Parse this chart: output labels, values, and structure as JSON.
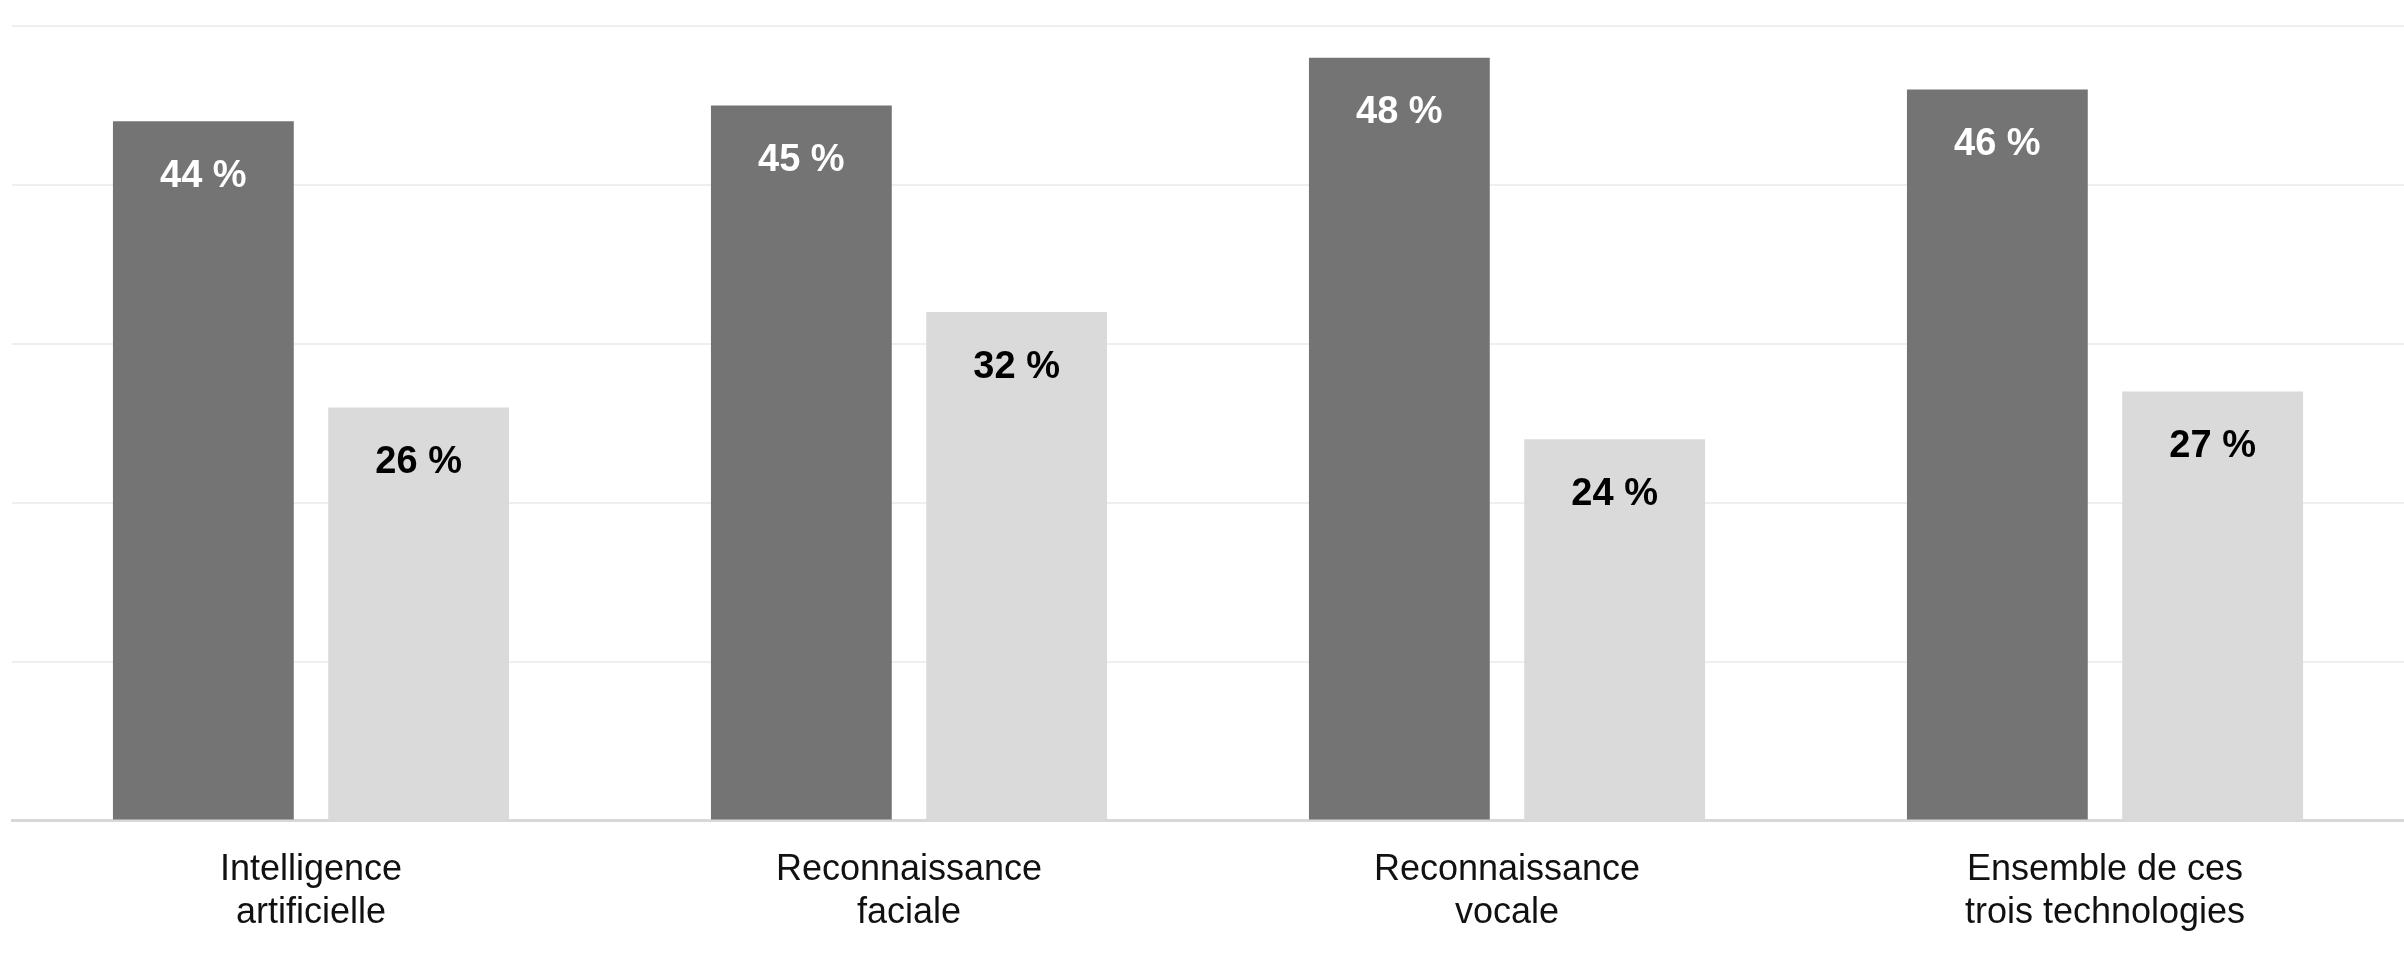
{
  "chart_data": {
    "type": "bar",
    "categories": [
      "Intelligence artificielle",
      "Reconnaissance faciale",
      "Reconnaissance vocale",
      "Ensemble de ces trois technologies"
    ],
    "series": [
      {
        "color": "#737473",
        "values": [
          44,
          45,
          48,
          46
        ],
        "value_labels": [
          "44 %",
          "45 %",
          "48 %",
          "46 %"
        ]
      },
      {
        "color": "#d9dad9",
        "values": [
          26,
          32,
          24,
          27
        ],
        "value_labels": [
          "26 %",
          "32 %",
          "24 %",
          "27 %"
        ]
      }
    ],
    "ylim": [
      0,
      50
    ],
    "yticks": [
      0,
      10,
      20,
      30,
      40,
      50
    ],
    "grid": "y",
    "tick_labels": "x",
    "legend": false
  }
}
